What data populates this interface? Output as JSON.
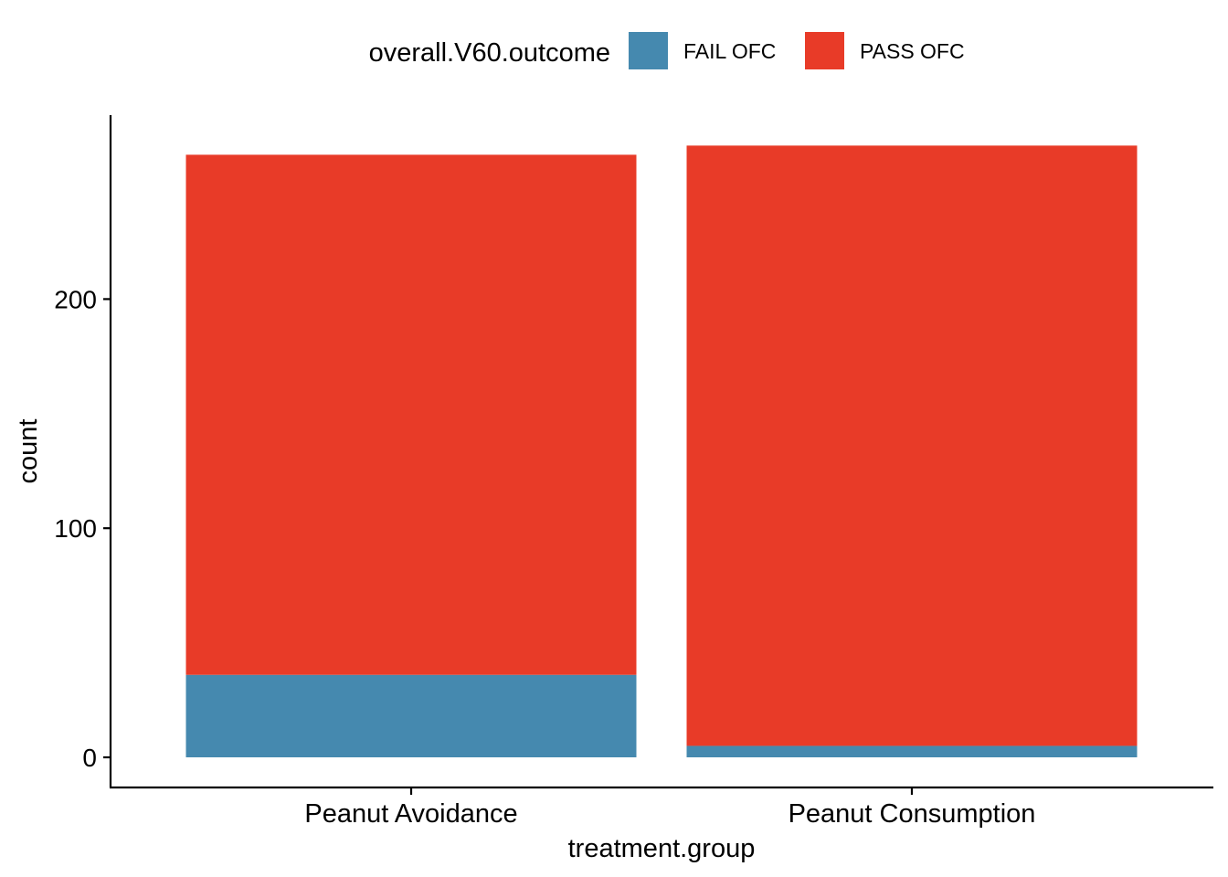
{
  "chart_data": {
    "type": "bar",
    "stacked": true,
    "categories": [
      "Peanut Avoidance",
      "Peanut Consumption"
    ],
    "series": [
      {
        "name": "FAIL OFC",
        "values": [
          36,
          5
        ],
        "color": "#4589AF"
      },
      {
        "name": "PASS OFC",
        "values": [
          227,
          262
        ],
        "color": "#E83B28"
      }
    ],
    "xlabel": "treatment.group",
    "ylabel": "count",
    "ylim": [
      0,
      270
    ],
    "yticks": [
      0,
      100,
      200
    ],
    "grid": false,
    "legend": {
      "title": "overall.V60.outcome",
      "position": "top"
    }
  }
}
